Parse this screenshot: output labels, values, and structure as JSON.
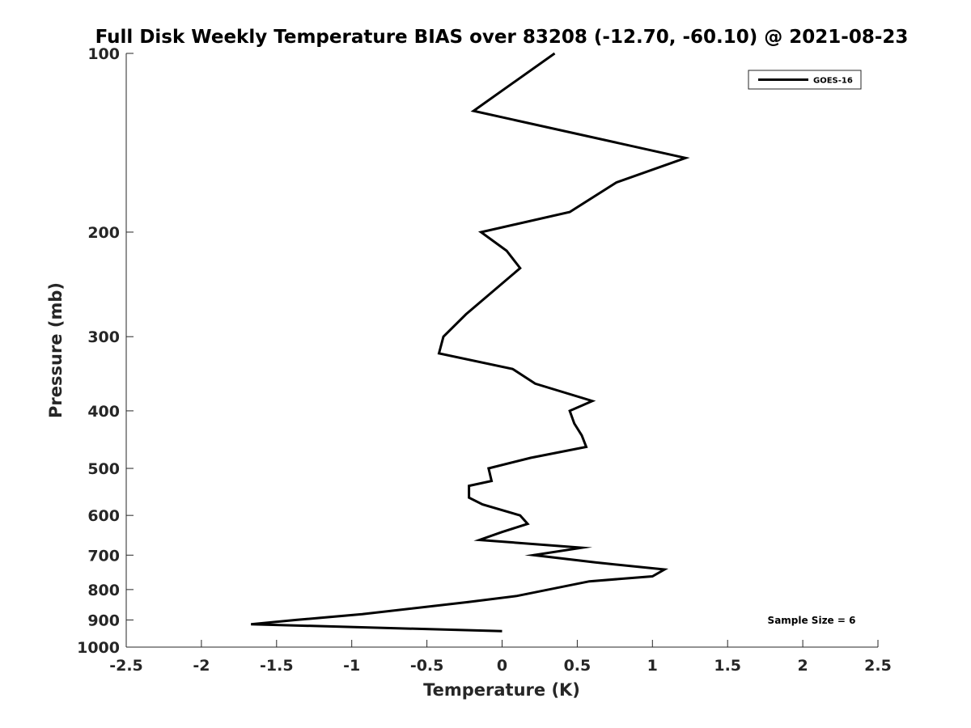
{
  "chart_data": {
    "type": "line",
    "title": "Full Disk Weekly Temperature BIAS over 83208 (-12.70, -60.10) @ 2021-08-23",
    "xlabel": "Temperature (K)",
    "ylabel": "Pressure (mb)",
    "xlim": [
      -2.5,
      2.5
    ],
    "ylim": [
      100,
      1000
    ],
    "y_scale": "log",
    "y_reversed": true,
    "grid": false,
    "legend_position": "top-right",
    "x_ticks": [
      -2.5,
      -2,
      -1.5,
      -1,
      -0.5,
      0,
      0.5,
      1,
      1.5,
      2,
      2.5
    ],
    "x_tick_labels": [
      "-2.5",
      "-2",
      "-1.5",
      "-1",
      "-0.5",
      "0",
      "0.5",
      "1",
      "1.5",
      "2",
      "2.5"
    ],
    "y_ticks": [
      100,
      200,
      300,
      400,
      500,
      600,
      700,
      800,
      900,
      1000
    ],
    "y_tick_labels": [
      "100",
      "200",
      "300",
      "400",
      "500",
      "600",
      "700",
      "800",
      "900",
      "1000"
    ],
    "series": [
      {
        "name": "GOES-16",
        "color": "#000000",
        "points": [
          {
            "x": 0.35,
            "y": 100
          },
          {
            "x": -0.19,
            "y": 125
          },
          {
            "x": 1.22,
            "y": 150
          },
          {
            "x": 0.76,
            "y": 165
          },
          {
            "x": 0.45,
            "y": 185
          },
          {
            "x": -0.14,
            "y": 200
          },
          {
            "x": 0.03,
            "y": 215
          },
          {
            "x": 0.12,
            "y": 230
          },
          {
            "x": -0.24,
            "y": 275
          },
          {
            "x": -0.39,
            "y": 300
          },
          {
            "x": -0.42,
            "y": 320
          },
          {
            "x": 0.07,
            "y": 340
          },
          {
            "x": 0.22,
            "y": 360
          },
          {
            "x": 0.6,
            "y": 385
          },
          {
            "x": 0.45,
            "y": 400
          },
          {
            "x": 0.48,
            "y": 420
          },
          {
            "x": 0.53,
            "y": 440
          },
          {
            "x": 0.56,
            "y": 460
          },
          {
            "x": 0.19,
            "y": 480
          },
          {
            "x": -0.09,
            "y": 500
          },
          {
            "x": -0.07,
            "y": 525
          },
          {
            "x": -0.22,
            "y": 535
          },
          {
            "x": -0.22,
            "y": 560
          },
          {
            "x": -0.13,
            "y": 575
          },
          {
            "x": 0.12,
            "y": 600
          },
          {
            "x": 0.17,
            "y": 620
          },
          {
            "x": 0.0,
            "y": 640
          },
          {
            "x": -0.15,
            "y": 660
          },
          {
            "x": 0.53,
            "y": 680
          },
          {
            "x": 0.21,
            "y": 700
          },
          {
            "x": 0.62,
            "y": 720
          },
          {
            "x": 1.08,
            "y": 740
          },
          {
            "x": 1.0,
            "y": 760
          },
          {
            "x": 0.58,
            "y": 775
          },
          {
            "x": 0.1,
            "y": 820
          },
          {
            "x": -0.23,
            "y": 840
          },
          {
            "x": -0.93,
            "y": 880
          },
          {
            "x": -1.37,
            "y": 900
          },
          {
            "x": -1.67,
            "y": 915
          },
          {
            "x": 0.0,
            "y": 940
          }
        ]
      }
    ],
    "annotation": "Sample Size = 6"
  }
}
